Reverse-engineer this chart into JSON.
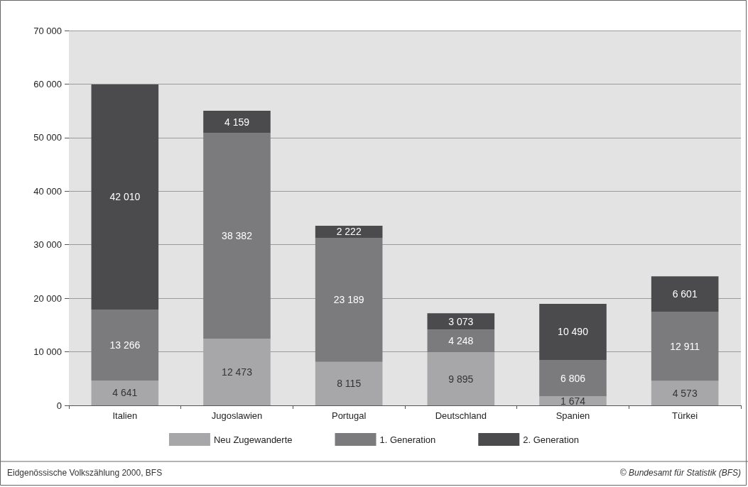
{
  "chart_data": {
    "type": "bar",
    "stacked": true,
    "categories": [
      "Italien",
      "Jugoslawien",
      "Portugal",
      "Deutschland",
      "Spanien",
      "Türkei"
    ],
    "series": [
      {
        "name": "Neu Zugewanderte",
        "color": "#a7a7a9",
        "values": [
          4641,
          12473,
          8115,
          9895,
          1674,
          4573
        ],
        "value_labels": [
          "4 641",
          "12 473",
          "8 115",
          "9 895",
          "1 674",
          "4 573"
        ]
      },
      {
        "name": "1. Generation",
        "color": "#7b7b7e",
        "values": [
          13266,
          38382,
          23189,
          4248,
          6806,
          12911
        ],
        "value_labels": [
          "13 266",
          "38 382",
          "23 189",
          "4 248",
          "6 806",
          "12 911"
        ]
      },
      {
        "name": "2. Generation",
        "color": "#4b4b4d",
        "values": [
          42010,
          4159,
          2222,
          3073,
          10490,
          6601
        ],
        "value_labels": [
          "42 010",
          "4 159",
          "2 222",
          "3 073",
          "10 490",
          "6 601"
        ]
      }
    ],
    "ylim": [
      0,
      70000
    ],
    "yticks": [
      {
        "value": 0,
        "label": "0"
      },
      {
        "value": 10000,
        "label": "10 000"
      },
      {
        "value": 20000,
        "label": "20 000"
      },
      {
        "value": 30000,
        "label": "30 000"
      },
      {
        "value": 40000,
        "label": "40 000"
      },
      {
        "value": 50000,
        "label": "50 000"
      },
      {
        "value": 60000,
        "label": "60 000"
      },
      {
        "value": 70000,
        "label": "70 000"
      }
    ],
    "grid": "y",
    "legend": "bottom",
    "annotations": [
      "Eidgenössische Volkszählung 2000, BFS",
      "© Bundesamt für Statistik (BFS)"
    ]
  }
}
